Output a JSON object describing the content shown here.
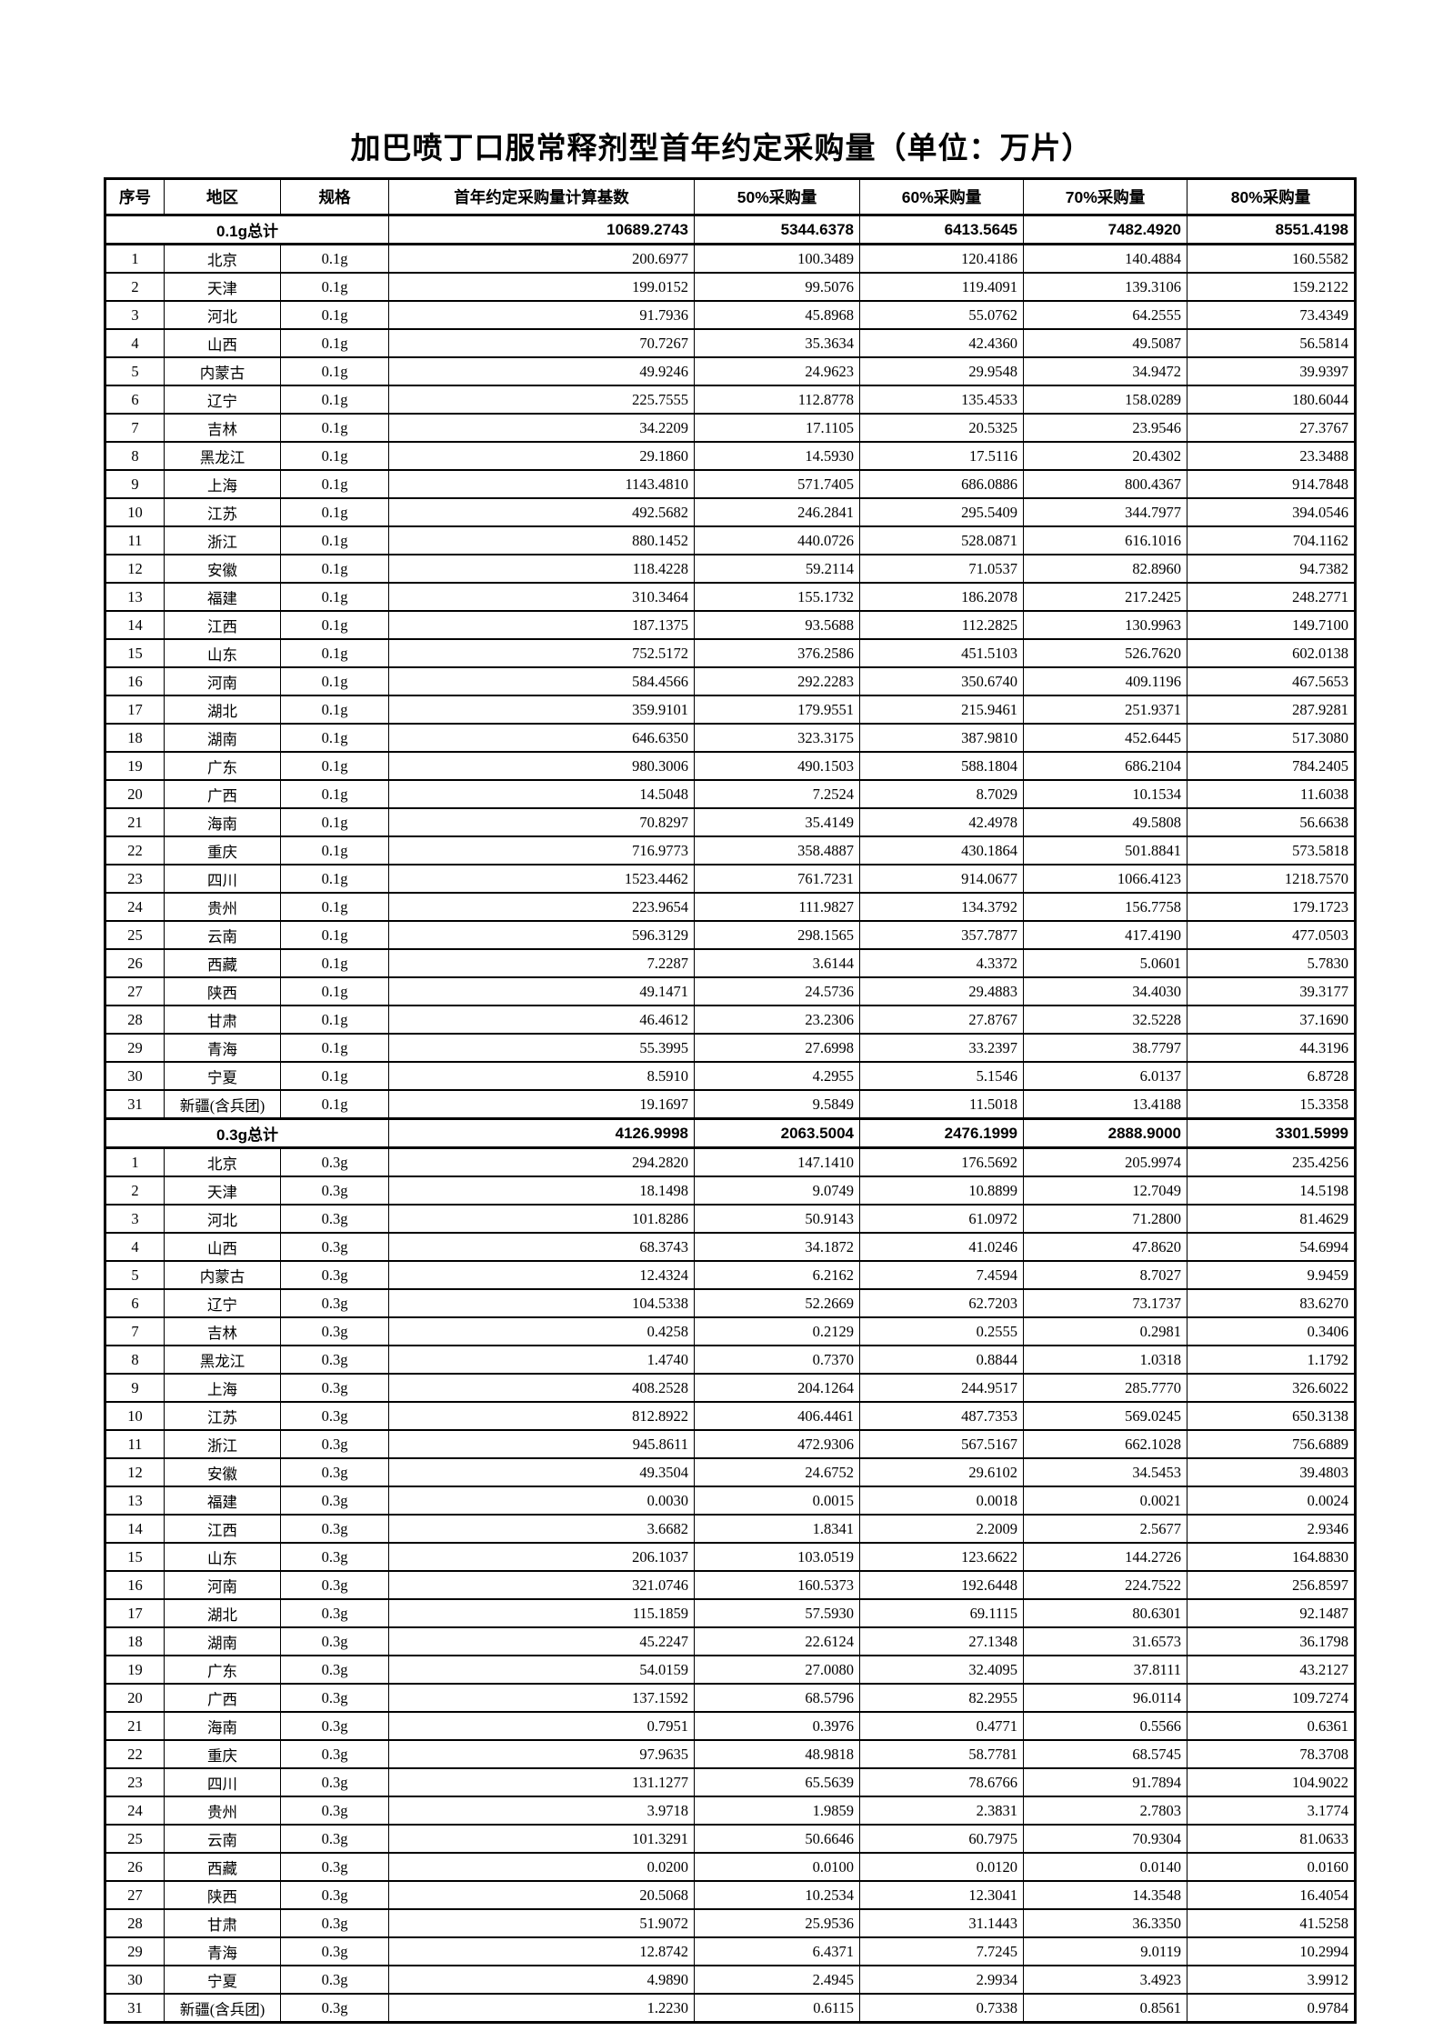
{
  "page": {
    "title": "加巴喷丁口服常释剂型首年约定采购量（单位：万片）"
  },
  "table": {
    "columns": [
      "序号",
      "地区",
      "规格",
      "首年约定采购量计算基数",
      "50%采购量",
      "60%采购量",
      "70%采购量",
      "80%采购量"
    ],
    "sections": [
      {
        "total_label": "0.1g总计",
        "totals": [
          "10689.2743",
          "5344.6378",
          "6413.5645",
          "7482.4920",
          "8551.4198"
        ],
        "rows": [
          {
            "no": "1",
            "region": "北京",
            "spec": "0.1g",
            "values": [
              "200.6977",
              "100.3489",
              "120.4186",
              "140.4884",
              "160.5582"
            ]
          },
          {
            "no": "2",
            "region": "天津",
            "spec": "0.1g",
            "values": [
              "199.0152",
              "99.5076",
              "119.4091",
              "139.3106",
              "159.2122"
            ]
          },
          {
            "no": "3",
            "region": "河北",
            "spec": "0.1g",
            "values": [
              "91.7936",
              "45.8968",
              "55.0762",
              "64.2555",
              "73.4349"
            ]
          },
          {
            "no": "4",
            "region": "山西",
            "spec": "0.1g",
            "values": [
              "70.7267",
              "35.3634",
              "42.4360",
              "49.5087",
              "56.5814"
            ]
          },
          {
            "no": "5",
            "region": "内蒙古",
            "spec": "0.1g",
            "values": [
              "49.9246",
              "24.9623",
              "29.9548",
              "34.9472",
              "39.9397"
            ]
          },
          {
            "no": "6",
            "region": "辽宁",
            "spec": "0.1g",
            "values": [
              "225.7555",
              "112.8778",
              "135.4533",
              "158.0289",
              "180.6044"
            ]
          },
          {
            "no": "7",
            "region": "吉林",
            "spec": "0.1g",
            "values": [
              "34.2209",
              "17.1105",
              "20.5325",
              "23.9546",
              "27.3767"
            ]
          },
          {
            "no": "8",
            "region": "黑龙江",
            "spec": "0.1g",
            "values": [
              "29.1860",
              "14.5930",
              "17.5116",
              "20.4302",
              "23.3488"
            ]
          },
          {
            "no": "9",
            "region": "上海",
            "spec": "0.1g",
            "values": [
              "1143.4810",
              "571.7405",
              "686.0886",
              "800.4367",
              "914.7848"
            ]
          },
          {
            "no": "10",
            "region": "江苏",
            "spec": "0.1g",
            "values": [
              "492.5682",
              "246.2841",
              "295.5409",
              "344.7977",
              "394.0546"
            ]
          },
          {
            "no": "11",
            "region": "浙江",
            "spec": "0.1g",
            "values": [
              "880.1452",
              "440.0726",
              "528.0871",
              "616.1016",
              "704.1162"
            ]
          },
          {
            "no": "12",
            "region": "安徽",
            "spec": "0.1g",
            "values": [
              "118.4228",
              "59.2114",
              "71.0537",
              "82.8960",
              "94.7382"
            ]
          },
          {
            "no": "13",
            "region": "福建",
            "spec": "0.1g",
            "values": [
              "310.3464",
              "155.1732",
              "186.2078",
              "217.2425",
              "248.2771"
            ]
          },
          {
            "no": "14",
            "region": "江西",
            "spec": "0.1g",
            "values": [
              "187.1375",
              "93.5688",
              "112.2825",
              "130.9963",
              "149.7100"
            ]
          },
          {
            "no": "15",
            "region": "山东",
            "spec": "0.1g",
            "values": [
              "752.5172",
              "376.2586",
              "451.5103",
              "526.7620",
              "602.0138"
            ]
          },
          {
            "no": "16",
            "region": "河南",
            "spec": "0.1g",
            "values": [
              "584.4566",
              "292.2283",
              "350.6740",
              "409.1196",
              "467.5653"
            ]
          },
          {
            "no": "17",
            "region": "湖北",
            "spec": "0.1g",
            "values": [
              "359.9101",
              "179.9551",
              "215.9461",
              "251.9371",
              "287.9281"
            ]
          },
          {
            "no": "18",
            "region": "湖南",
            "spec": "0.1g",
            "values": [
              "646.6350",
              "323.3175",
              "387.9810",
              "452.6445",
              "517.3080"
            ]
          },
          {
            "no": "19",
            "region": "广东",
            "spec": "0.1g",
            "values": [
              "980.3006",
              "490.1503",
              "588.1804",
              "686.2104",
              "784.2405"
            ]
          },
          {
            "no": "20",
            "region": "广西",
            "spec": "0.1g",
            "values": [
              "14.5048",
              "7.2524",
              "8.7029",
              "10.1534",
              "11.6038"
            ]
          },
          {
            "no": "21",
            "region": "海南",
            "spec": "0.1g",
            "values": [
              "70.8297",
              "35.4149",
              "42.4978",
              "49.5808",
              "56.6638"
            ]
          },
          {
            "no": "22",
            "region": "重庆",
            "spec": "0.1g",
            "values": [
              "716.9773",
              "358.4887",
              "430.1864",
              "501.8841",
              "573.5818"
            ]
          },
          {
            "no": "23",
            "region": "四川",
            "spec": "0.1g",
            "values": [
              "1523.4462",
              "761.7231",
              "914.0677",
              "1066.4123",
              "1218.7570"
            ]
          },
          {
            "no": "24",
            "region": "贵州",
            "spec": "0.1g",
            "values": [
              "223.9654",
              "111.9827",
              "134.3792",
              "156.7758",
              "179.1723"
            ]
          },
          {
            "no": "25",
            "region": "云南",
            "spec": "0.1g",
            "values": [
              "596.3129",
              "298.1565",
              "357.7877",
              "417.4190",
              "477.0503"
            ]
          },
          {
            "no": "26",
            "region": "西藏",
            "spec": "0.1g",
            "values": [
              "7.2287",
              "3.6144",
              "4.3372",
              "5.0601",
              "5.7830"
            ]
          },
          {
            "no": "27",
            "region": "陕西",
            "spec": "0.1g",
            "values": [
              "49.1471",
              "24.5736",
              "29.4883",
              "34.4030",
              "39.3177"
            ]
          },
          {
            "no": "28",
            "region": "甘肃",
            "spec": "0.1g",
            "values": [
              "46.4612",
              "23.2306",
              "27.8767",
              "32.5228",
              "37.1690"
            ]
          },
          {
            "no": "29",
            "region": "青海",
            "spec": "0.1g",
            "values": [
              "55.3995",
              "27.6998",
              "33.2397",
              "38.7797",
              "44.3196"
            ]
          },
          {
            "no": "30",
            "region": "宁夏",
            "spec": "0.1g",
            "values": [
              "8.5910",
              "4.2955",
              "5.1546",
              "6.0137",
              "6.8728"
            ]
          },
          {
            "no": "31",
            "region": "新疆(含兵团)",
            "spec": "0.1g",
            "values": [
              "19.1697",
              "9.5849",
              "11.5018",
              "13.4188",
              "15.3358"
            ]
          }
        ]
      },
      {
        "total_label": "0.3g总计",
        "totals": [
          "4126.9998",
          "2063.5004",
          "2476.1999",
          "2888.9000",
          "3301.5999"
        ],
        "rows": [
          {
            "no": "1",
            "region": "北京",
            "spec": "0.3g",
            "values": [
              "294.2820",
              "147.1410",
              "176.5692",
              "205.9974",
              "235.4256"
            ]
          },
          {
            "no": "2",
            "region": "天津",
            "spec": "0.3g",
            "values": [
              "18.1498",
              "9.0749",
              "10.8899",
              "12.7049",
              "14.5198"
            ]
          },
          {
            "no": "3",
            "region": "河北",
            "spec": "0.3g",
            "values": [
              "101.8286",
              "50.9143",
              "61.0972",
              "71.2800",
              "81.4629"
            ]
          },
          {
            "no": "4",
            "region": "山西",
            "spec": "0.3g",
            "values": [
              "68.3743",
              "34.1872",
              "41.0246",
              "47.8620",
              "54.6994"
            ]
          },
          {
            "no": "5",
            "region": "内蒙古",
            "spec": "0.3g",
            "values": [
              "12.4324",
              "6.2162",
              "7.4594",
              "8.7027",
              "9.9459"
            ]
          },
          {
            "no": "6",
            "region": "辽宁",
            "spec": "0.3g",
            "values": [
              "104.5338",
              "52.2669",
              "62.7203",
              "73.1737",
              "83.6270"
            ]
          },
          {
            "no": "7",
            "region": "吉林",
            "spec": "0.3g",
            "values": [
              "0.4258",
              "0.2129",
              "0.2555",
              "0.2981",
              "0.3406"
            ]
          },
          {
            "no": "8",
            "region": "黑龙江",
            "spec": "0.3g",
            "values": [
              "1.4740",
              "0.7370",
              "0.8844",
              "1.0318",
              "1.1792"
            ]
          },
          {
            "no": "9",
            "region": "上海",
            "spec": "0.3g",
            "values": [
              "408.2528",
              "204.1264",
              "244.9517",
              "285.7770",
              "326.6022"
            ]
          },
          {
            "no": "10",
            "region": "江苏",
            "spec": "0.3g",
            "values": [
              "812.8922",
              "406.4461",
              "487.7353",
              "569.0245",
              "650.3138"
            ]
          },
          {
            "no": "11",
            "region": "浙江",
            "spec": "0.3g",
            "values": [
              "945.8611",
              "472.9306",
              "567.5167",
              "662.1028",
              "756.6889"
            ]
          },
          {
            "no": "12",
            "region": "安徽",
            "spec": "0.3g",
            "values": [
              "49.3504",
              "24.6752",
              "29.6102",
              "34.5453",
              "39.4803"
            ]
          },
          {
            "no": "13",
            "region": "福建",
            "spec": "0.3g",
            "values": [
              "0.0030",
              "0.0015",
              "0.0018",
              "0.0021",
              "0.0024"
            ]
          },
          {
            "no": "14",
            "region": "江西",
            "spec": "0.3g",
            "values": [
              "3.6682",
              "1.8341",
              "2.2009",
              "2.5677",
              "2.9346"
            ]
          },
          {
            "no": "15",
            "region": "山东",
            "spec": "0.3g",
            "values": [
              "206.1037",
              "103.0519",
              "123.6622",
              "144.2726",
              "164.8830"
            ]
          },
          {
            "no": "16",
            "region": "河南",
            "spec": "0.3g",
            "values": [
              "321.0746",
              "160.5373",
              "192.6448",
              "224.7522",
              "256.8597"
            ]
          },
          {
            "no": "17",
            "region": "湖北",
            "spec": "0.3g",
            "values": [
              "115.1859",
              "57.5930",
              "69.1115",
              "80.6301",
              "92.1487"
            ]
          },
          {
            "no": "18",
            "region": "湖南",
            "spec": "0.3g",
            "values": [
              "45.2247",
              "22.6124",
              "27.1348",
              "31.6573",
              "36.1798"
            ]
          },
          {
            "no": "19",
            "region": "广东",
            "spec": "0.3g",
            "values": [
              "54.0159",
              "27.0080",
              "32.4095",
              "37.8111",
              "43.2127"
            ]
          },
          {
            "no": "20",
            "region": "广西",
            "spec": "0.3g",
            "values": [
              "137.1592",
              "68.5796",
              "82.2955",
              "96.0114",
              "109.7274"
            ]
          },
          {
            "no": "21",
            "region": "海南",
            "spec": "0.3g",
            "values": [
              "0.7951",
              "0.3976",
              "0.4771",
              "0.5566",
              "0.6361"
            ]
          },
          {
            "no": "22",
            "region": "重庆",
            "spec": "0.3g",
            "values": [
              "97.9635",
              "48.9818",
              "58.7781",
              "68.5745",
              "78.3708"
            ]
          },
          {
            "no": "23",
            "region": "四川",
            "spec": "0.3g",
            "values": [
              "131.1277",
              "65.5639",
              "78.6766",
              "91.7894",
              "104.9022"
            ]
          },
          {
            "no": "24",
            "region": "贵州",
            "spec": "0.3g",
            "values": [
              "3.9718",
              "1.9859",
              "2.3831",
              "2.7803",
              "3.1774"
            ]
          },
          {
            "no": "25",
            "region": "云南",
            "spec": "0.3g",
            "values": [
              "101.3291",
              "50.6646",
              "60.7975",
              "70.9304",
              "81.0633"
            ]
          },
          {
            "no": "26",
            "region": "西藏",
            "spec": "0.3g",
            "values": [
              "0.0200",
              "0.0100",
              "0.0120",
              "0.0140",
              "0.0160"
            ]
          },
          {
            "no": "27",
            "region": "陕西",
            "spec": "0.3g",
            "values": [
              "20.5068",
              "10.2534",
              "12.3041",
              "14.3548",
              "16.4054"
            ]
          },
          {
            "no": "28",
            "region": "甘肃",
            "spec": "0.3g",
            "values": [
              "51.9072",
              "25.9536",
              "31.1443",
              "36.3350",
              "41.5258"
            ]
          },
          {
            "no": "29",
            "region": "青海",
            "spec": "0.3g",
            "values": [
              "12.8742",
              "6.4371",
              "7.7245",
              "9.0119",
              "10.2994"
            ]
          },
          {
            "no": "30",
            "region": "宁夏",
            "spec": "0.3g",
            "values": [
              "4.9890",
              "2.4945",
              "2.9934",
              "3.4923",
              "3.9912"
            ]
          },
          {
            "no": "31",
            "region": "新疆(含兵团)",
            "spec": "0.3g",
            "values": [
              "1.2230",
              "0.6115",
              "0.7338",
              "0.8561",
              "0.9784"
            ]
          }
        ]
      }
    ]
  }
}
